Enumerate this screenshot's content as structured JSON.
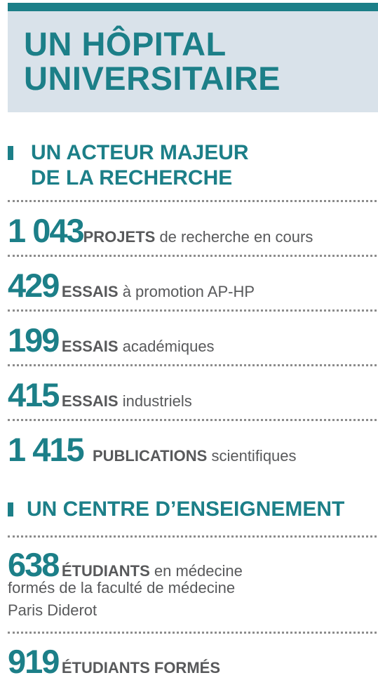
{
  "header": {
    "title_line1": "UN HÔPITAL",
    "title_line2": "UNIVERSITAIRE"
  },
  "research": {
    "heading_line1": "UN ACTEUR MAJEUR",
    "heading_line2": "DE LA RECHERCHE",
    "stats": [
      {
        "number": "1 043",
        "label": "PROJETS",
        "text": " de recherche en cours"
      },
      {
        "number": "429",
        "label": "ESSAIS",
        "text": " à promotion AP-HP"
      },
      {
        "number": "199",
        "label": "ESSAIS",
        "text": " académiques"
      },
      {
        "number": "415",
        "label": "ESSAIS",
        "text": " industriels"
      },
      {
        "number": "1 415",
        "label": "PUBLICATIONS",
        "text": " scientifiques"
      }
    ]
  },
  "teaching": {
    "heading": "UN CENTRE D’ENSEIGNEMENT",
    "stats": [
      {
        "number": "638",
        "label": "ÉTUDIANTS",
        "text": " en médecine",
        "line2": "formés de la faculté de médecine",
        "line3": "Paris Diderot"
      },
      {
        "number": "919",
        "label": "ÉTUDIANTS FORMÉS",
        "text": ""
      }
    ]
  },
  "colors": {
    "accent": "#1c7f88",
    "panel": "#d9e2ea",
    "text": "#58595b"
  }
}
